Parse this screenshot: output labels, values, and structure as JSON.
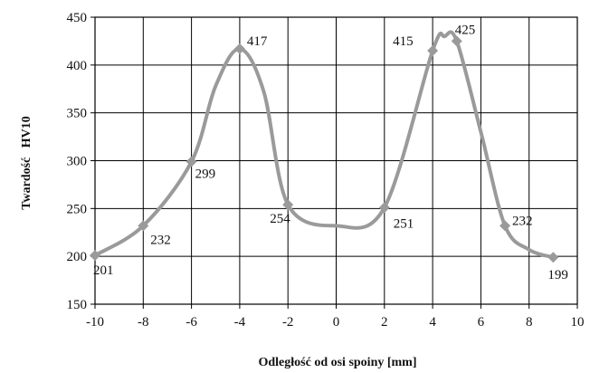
{
  "chart_data": {
    "type": "line",
    "title": "",
    "xlabel": "Odległość od osi spoiny [mm]",
    "ylabel": "Twardość   HV10",
    "xlim": [
      -10,
      10
    ],
    "ylim": [
      150,
      450
    ],
    "xticks": [
      "-10",
      "-8",
      "-6",
      "-4",
      "-2",
      "0",
      "2",
      "4",
      "6",
      "8",
      "10"
    ],
    "yticks": [
      "150",
      "200",
      "250",
      "300",
      "350",
      "400",
      "450"
    ],
    "grid": true,
    "legend": "none",
    "series": [
      {
        "x": [
          -10,
          -8,
          -6,
          -4,
          -2,
          2,
          4,
          5,
          7,
          9
        ],
        "y": [
          201,
          232,
          299,
          417,
          254,
          251,
          415,
          425,
          232,
          199
        ],
        "labels": [
          "201",
          "232",
          "299",
          "417",
          "254",
          "251",
          "415",
          "425",
          "232",
          "199"
        ],
        "color": "#9a9a9a"
      }
    ]
  }
}
